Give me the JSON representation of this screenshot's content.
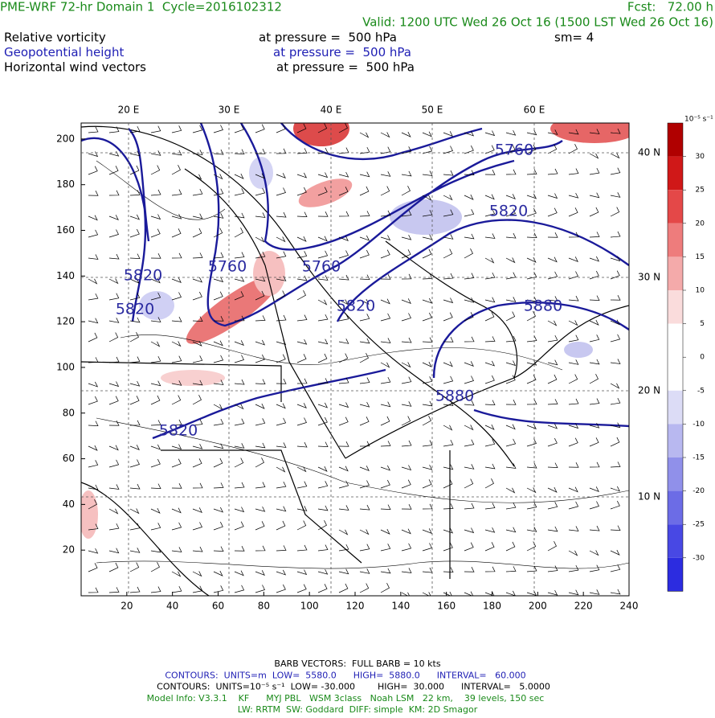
{
  "header": {
    "title": "PME-WRF 72-hr Domain 1  Cycle=2016102312",
    "forecast": "Fcst:   72.00 h",
    "valid": "Valid: 1200 UTC Wed 26 Oct 16 (1500 LST Wed 26 Oct 16)",
    "fields": [
      {
        "name": "Relative vorticity",
        "level": "at pressure =  500 hPa",
        "color": "#000000"
      },
      {
        "name": "Geopotential height",
        "level": "at pressure =  500 hPa",
        "color": "#1e1eb4"
      },
      {
        "name": "Horizontal wind vectors",
        "level": "at pressure =  500 hPa",
        "color": "#000000"
      }
    ],
    "smoothing": "sm= 4"
  },
  "map": {
    "xlim": [
      0,
      240
    ],
    "ylim": [
      0,
      207
    ],
    "xticks": [
      20,
      40,
      60,
      80,
      100,
      120,
      140,
      160,
      180,
      200,
      220,
      240
    ],
    "yticks": [
      20,
      40,
      60,
      80,
      100,
      120,
      140,
      160,
      180,
      200
    ],
    "lon_labels": [
      "20 E",
      "30 E",
      "40 E",
      "50 E",
      "60 E"
    ],
    "lat_labels": [
      "40 N",
      "30 N",
      "20 N",
      "10 N"
    ],
    "contour_labels": [
      "5760",
      "5820",
      "5760",
      "5760",
      "5820",
      "5820",
      "5820",
      "5880",
      "5880",
      "5820"
    ]
  },
  "colorbar": {
    "unit": "10⁻⁵ s⁻¹",
    "levels": [
      30,
      25,
      20,
      15,
      10,
      5,
      0,
      -5,
      -10,
      -15,
      -20,
      -25,
      -30
    ],
    "colors": [
      "#b00000",
      "#d01818",
      "#e44848",
      "#ee7c7c",
      "#f4aaaa",
      "#fadcdc",
      "#ffffff",
      "#ffffff",
      "#dcdcf6",
      "#b8b8f0",
      "#9090ea",
      "#6c6ce6",
      "#4848e4",
      "#2c2ce0"
    ]
  },
  "footer": [
    "BARB VECTORS:  FULL BARB = 10 kts",
    "CONTOURS:  UNITS=m  LOW=  5580.0      HIGH=  5880.0      INTERVAL=   60.000",
    "CONTOURS:  UNITS=10⁻⁵ s⁻¹  LOW= -30.000        HIGH=  30.000      INTERVAL=   5.0000",
    "Model Info: V3.3.1    KF      MYJ PBL   WSM 3class   Noah LSM   22 km,    39 levels, 150 sec",
    "LW: RRTM  SW: Goddard  DIFF: simple  KM: 2D Smagor"
  ]
}
